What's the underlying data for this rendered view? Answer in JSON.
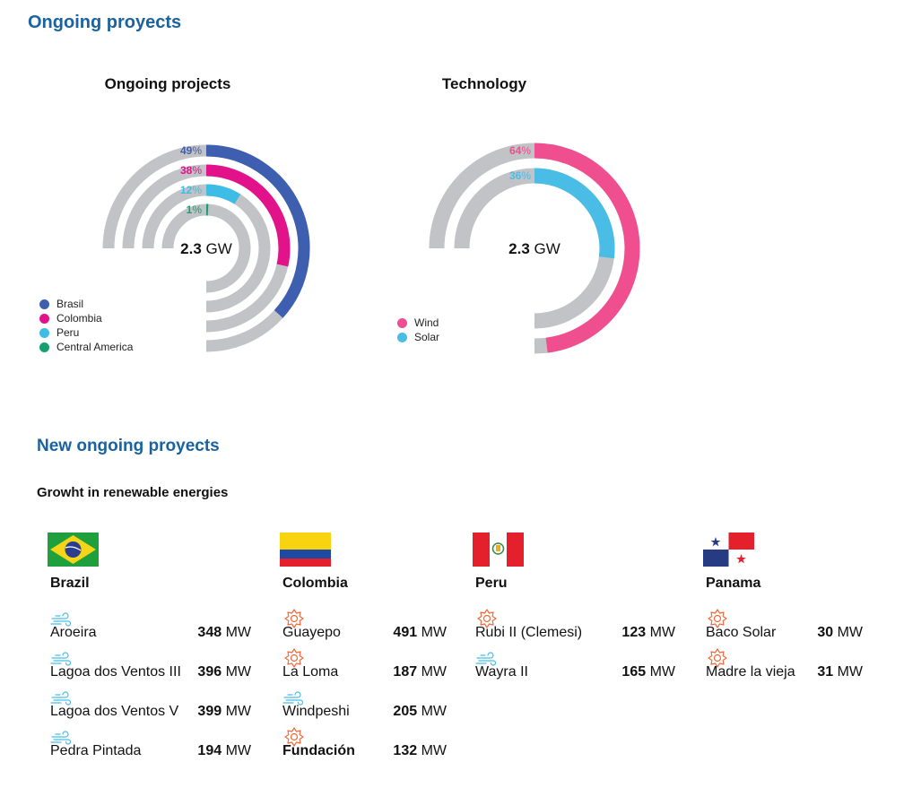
{
  "header": {
    "title": "Ongoing proyects"
  },
  "colors": {
    "brasil": "#3e5fb0",
    "colombia": "#e2128a",
    "peru": "#3dbde6",
    "central_america": "#16a06e",
    "wind": "#ef4e8f",
    "solar": "#49bde6",
    "track": "#c2c3c6",
    "heading": "#1a63a0"
  },
  "chart_data": [
    {
      "type": "radial-bar",
      "title": "Ongoing projects",
      "center_value": "2.3",
      "center_unit": " GW",
      "series": [
        {
          "name": "Brasil",
          "value": 49,
          "label": "49",
          "color": "#3e5fb0"
        },
        {
          "name": "Colombia",
          "value": 38,
          "label": "38",
          "color": "#e2128a"
        },
        {
          "name": "Peru",
          "value": 12,
          "label": "12",
          "color": "#3dbde6"
        },
        {
          "name": "Central America",
          "value": 1,
          "label": "1",
          "color": "#16a06e"
        }
      ],
      "unit": "%"
    },
    {
      "type": "radial-bar",
      "title": "Technology",
      "center_value": "2.3",
      "center_unit": " GW",
      "series": [
        {
          "name": "Wind",
          "value": 64,
          "label": "64",
          "color": "#ef4e8f"
        },
        {
          "name": "Solar",
          "value": 36,
          "label": "36",
          "color": "#49bde6"
        }
      ],
      "unit": "%"
    }
  ],
  "section2": {
    "title": "New ongoing proyects",
    "subtitle": "Growht in renewable energies"
  },
  "unit_mw": "MW",
  "countries": [
    {
      "name": "Brazil",
      "flag": "brazil",
      "projects": [
        {
          "icon": "wind-icon",
          "name": "Aroeira",
          "value": "348"
        },
        {
          "icon": "wind-icon",
          "name": "Lagoa dos Ventos III",
          "value": "396"
        },
        {
          "icon": "wind-icon",
          "name": "Lagoa dos Ventos V",
          "value": "399"
        },
        {
          "icon": "wind-icon",
          "name": "Pedra Pintada",
          "value": "194"
        }
      ]
    },
    {
      "name": "Colombia",
      "flag": "colombia",
      "projects": [
        {
          "icon": "sun-icon",
          "name": "Guayepo",
          "value": "491"
        },
        {
          "icon": "sun-icon",
          "name": "La Loma",
          "value": "187"
        },
        {
          "icon": "wind-icon",
          "name": "Windpeshi",
          "value": "205"
        },
        {
          "icon": "sun-icon",
          "name": "Fundación",
          "value": "132",
          "bold": true
        }
      ]
    },
    {
      "name": "Peru",
      "flag": "peru",
      "projects": [
        {
          "icon": "sun-icon",
          "name": "Rubi II (Clemesi)",
          "value": "123"
        },
        {
          "icon": "wind-icon",
          "name": "Wayra II",
          "value": "165"
        }
      ]
    },
    {
      "name": "Panama",
      "flag": "panama",
      "projects": [
        {
          "icon": "sun-icon",
          "name": "Baco Solar",
          "value": "30"
        },
        {
          "icon": "sun-icon",
          "name": "Madre la vieja",
          "value": "31"
        }
      ]
    }
  ]
}
